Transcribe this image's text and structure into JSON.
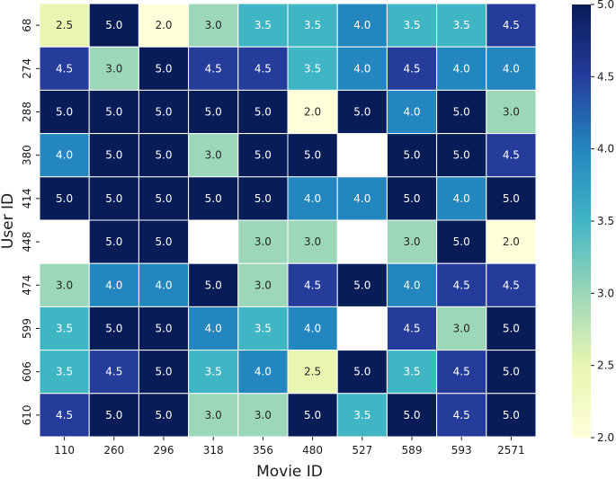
{
  "chart_data": {
    "type": "heatmap",
    "xlabel": "Movie ID",
    "ylabel": "User ID",
    "x_categories": [
      "110",
      "260",
      "296",
      "318",
      "356",
      "480",
      "527",
      "589",
      "593",
      "2571"
    ],
    "y_categories": [
      "68",
      "274",
      "288",
      "380",
      "414",
      "448",
      "474",
      "599",
      "606",
      "610"
    ],
    "values": [
      [
        2.5,
        5.0,
        2.0,
        3.0,
        3.5,
        3.5,
        4.0,
        3.5,
        3.5,
        4.5
      ],
      [
        4.5,
        3.0,
        5.0,
        4.5,
        4.5,
        3.5,
        4.0,
        4.5,
        4.0,
        4.0
      ],
      [
        5.0,
        5.0,
        5.0,
        5.0,
        5.0,
        2.0,
        5.0,
        4.0,
        5.0,
        3.0
      ],
      [
        4.0,
        5.0,
        5.0,
        3.0,
        5.0,
        5.0,
        null,
        5.0,
        5.0,
        4.5
      ],
      [
        5.0,
        5.0,
        5.0,
        5.0,
        5.0,
        4.0,
        4.0,
        5.0,
        4.0,
        5.0
      ],
      [
        null,
        5.0,
        5.0,
        null,
        3.0,
        3.0,
        null,
        3.0,
        5.0,
        2.0
      ],
      [
        3.0,
        4.0,
        4.0,
        5.0,
        3.0,
        4.5,
        5.0,
        4.0,
        4.5,
        4.5
      ],
      [
        3.5,
        5.0,
        5.0,
        4.0,
        3.5,
        4.0,
        null,
        4.5,
        3.0,
        5.0
      ],
      [
        3.5,
        4.5,
        5.0,
        3.5,
        4.0,
        2.5,
        5.0,
        3.5,
        4.5,
        5.0
      ],
      [
        4.5,
        5.0,
        5.0,
        3.0,
        3.0,
        5.0,
        3.5,
        5.0,
        4.5,
        5.0
      ]
    ],
    "value_range": [
      2.0,
      5.0
    ],
    "colormap": "YlGnBu",
    "annotations": true,
    "colorbar": {
      "ticks": [
        2.0,
        2.5,
        3.0,
        3.5,
        4.0,
        4.5,
        5.0
      ],
      "colors": {
        "2.0": "#ffffd9",
        "2.5": "#e8f6b1",
        "3.0": "#9cd7b9",
        "3.5": "#40b5c4",
        "4.0": "#2386be",
        "4.5": "#253c9b",
        "5.0": "#081d58"
      }
    }
  }
}
